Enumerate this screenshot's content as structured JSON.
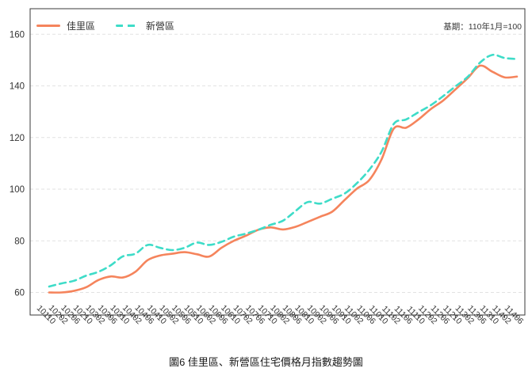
{
  "figure": {
    "note": "基期：110年1月=100",
    "caption": "圖6 佳里區、新營區住宅價格月指數趨勢圖"
  },
  "chart_data": {
    "type": "line",
    "title": "圖6 佳里區、新營區住宅價格月指數趨勢圖",
    "note": "基期：110年1月=100",
    "grid": "horizontal-dashed",
    "legend_position": "top-left-inside",
    "ylim": [
      50,
      170
    ],
    "yticks": [
      60,
      80,
      100,
      120,
      140,
      160
    ],
    "categories": [
      "10110",
      "10202",
      "10206",
      "10210",
      "10302",
      "10306",
      "10310",
      "10402",
      "10406",
      "10410",
      "10502",
      "10506",
      "10510",
      "10602",
      "10606",
      "10610",
      "10702",
      "10706",
      "10710",
      "10802",
      "10806",
      "10810",
      "10902",
      "10906",
      "10910",
      "11002",
      "11006",
      "11010",
      "11102",
      "11106",
      "11110",
      "11202",
      "11206",
      "11210",
      "11302",
      "11306",
      "11310",
      "11402",
      "11406"
    ],
    "series": [
      {
        "name": "佳里區",
        "style": "solid",
        "color": "#F5845C",
        "values": [
          60,
          60,
          60.6,
          62,
          64.8,
          66.2,
          65.8,
          68,
          72.5,
          74.3,
          75,
          75.6,
          74.8,
          73.9,
          77.3,
          80,
          82,
          84.3,
          85.2,
          84.4,
          85.4,
          87.3,
          89.3,
          91.3,
          95.8,
          100.2,
          103.5,
          111.5,
          123.5,
          123.8,
          127,
          131,
          134.3,
          138.6,
          143,
          147.8,
          145.5,
          143.3,
          143.6
        ]
      },
      {
        "name": "新營區",
        "style": "dashed",
        "color": "#3EDCC8",
        "values": [
          62.3,
          63.5,
          64.5,
          66.5,
          68,
          70.5,
          74,
          75,
          78.4,
          77.3,
          76.4,
          77.3,
          79.3,
          78.4,
          79.6,
          81.6,
          82.8,
          84.3,
          86.2,
          87.8,
          91.5,
          95,
          94.4,
          96.3,
          98.3,
          102.3,
          107.5,
          114.5,
          125.3,
          127,
          129.8,
          132.5,
          136,
          139.8,
          143.5,
          149,
          152,
          150.8,
          150.4
        ]
      }
    ],
    "axis_color": "#3a3a3a",
    "gridline_color": "#e2e2e2"
  }
}
